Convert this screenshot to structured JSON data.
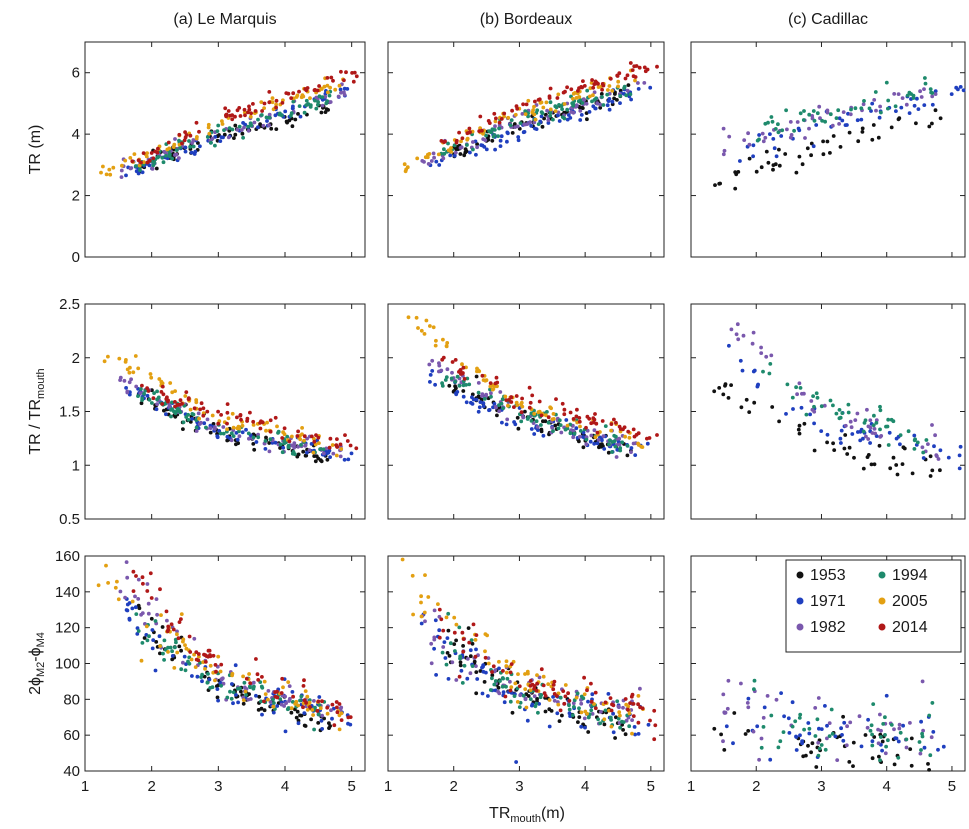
{
  "chart_data": {
    "type": "scatter",
    "layout": "3x3 grid of scatter panels sharing x axis",
    "columns": [
      {
        "key": "marquis",
        "title": "(a) Le Marquis"
      },
      {
        "key": "bordeaux",
        "title": "(b) Bordeaux"
      },
      {
        "key": "cadillac",
        "title": "(c) Cadillac"
      }
    ],
    "xlabel": {
      "main": "TR",
      "sub": "mouth",
      "unit": "(m)"
    },
    "xlim": [
      1,
      5.2
    ],
    "xticks": [
      "1",
      "2",
      "3",
      "4",
      "5"
    ],
    "rows": [
      {
        "key": "tr",
        "ylabel": {
          "main": "TR (m)"
        },
        "ylim": [
          0,
          7
        ],
        "yticks": [
          "0",
          "2",
          "4",
          "6"
        ]
      },
      {
        "key": "ratio",
        "ylabel": {
          "main": "TR / TR",
          "sub": "mouth"
        },
        "ylim": [
          0.5,
          2.5
        ],
        "yticks": [
          "0.5",
          "1",
          "1.5",
          "2",
          "2.5"
        ]
      },
      {
        "key": "phase",
        "ylabel": {
          "pre": "2ϕ",
          "sub1": "M2",
          "mid": "-ϕ",
          "sub2": "M4"
        },
        "ylim": [
          40,
          160
        ],
        "yticks": [
          "40",
          "60",
          "80",
          "100",
          "120",
          "140",
          "160"
        ]
      }
    ],
    "series": [
      {
        "name": "1953",
        "color": "#111111"
      },
      {
        "name": "1971",
        "color": "#1f3fbf"
      },
      {
        "name": "1982",
        "color": "#7a58ad"
      },
      {
        "name": "1994",
        "color": "#1e8a6c"
      },
      {
        "name": "2005",
        "color": "#e3a012"
      },
      {
        "name": "2014",
        "color": "#b01818"
      }
    ],
    "legend": {
      "position": "top-right of panel (c) Cadillac, bottom row",
      "columns": 2
    },
    "grid": false,
    "series_ranges": {
      "marquis": {
        "1953": [
          1.8,
          4.7
        ],
        "1971": [
          1.6,
          5.0
        ],
        "1982": [
          1.5,
          4.9
        ],
        "1994": [
          1.7,
          4.7
        ],
        "2005": [
          1.2,
          4.9
        ],
        "2014": [
          1.7,
          5.1
        ]
      },
      "bordeaux": {
        "1953": [
          1.9,
          4.7
        ],
        "1971": [
          1.5,
          5.0
        ],
        "1982": [
          1.5,
          4.9
        ],
        "1994": [
          1.8,
          4.7
        ],
        "2005": [
          1.2,
          4.9
        ],
        "2014": [
          1.7,
          5.1
        ]
      },
      "cadillac": {
        "1953": [
          1.3,
          4.9
        ],
        "1971": [
          1.5,
          5.2
        ],
        "1982": [
          1.4,
          4.8
        ],
        "1994": [
          1.9,
          4.7
        ]
      }
    },
    "trends": {
      "tr": {
        "marquis": {
          "1953": [
            [
              1.8,
              3.0
            ],
            [
              3,
              3.9
            ],
            [
              4.7,
              4.9
            ]
          ],
          "1971": [
            [
              1.6,
              2.75
            ],
            [
              3,
              3.9
            ],
            [
              5,
              5.5
            ]
          ],
          "1982": [
            [
              1.5,
              2.8
            ],
            [
              3,
              4.0
            ],
            [
              4.9,
              5.3
            ]
          ],
          "1994": [
            [
              1.7,
              2.9
            ],
            [
              3,
              4.0
            ],
            [
              4.7,
              5.2
            ]
          ],
          "2005": [
            [
              1.2,
              2.6
            ],
            [
              3,
              4.3
            ],
            [
              4.9,
              5.8
            ]
          ],
          "2014": [
            [
              1.7,
              3.1
            ],
            [
              3,
              4.5
            ],
            [
              5.1,
              6.0
            ]
          ]
        },
        "bordeaux": {
          "1953": [
            [
              1.9,
              3.3
            ],
            [
              3,
              4.3
            ],
            [
              4.7,
              5.3
            ]
          ],
          "1971": [
            [
              1.5,
              2.9
            ],
            [
              3,
              4.1
            ],
            [
              5,
              5.6
            ]
          ],
          "1982": [
            [
              1.5,
              3.0
            ],
            [
              3,
              4.4
            ],
            [
              4.9,
              5.5
            ]
          ],
          "1994": [
            [
              1.8,
              3.3
            ],
            [
              3,
              4.5
            ],
            [
              4.7,
              5.5
            ]
          ],
          "2005": [
            [
              1.2,
              2.9
            ],
            [
              3,
              4.7
            ],
            [
              4.9,
              6.0
            ]
          ],
          "2014": [
            [
              1.7,
              3.4
            ],
            [
              3,
              4.9
            ],
            [
              5.1,
              6.3
            ]
          ]
        },
        "cadillac": {
          "1953": [
            [
              1.3,
              2.45
            ],
            [
              2,
              3.0
            ],
            [
              3,
              3.6
            ],
            [
              4,
              4.2
            ],
            [
              4.9,
              4.7
            ]
          ],
          "1971": [
            [
              1.5,
              3.3
            ],
            [
              3,
              4.2
            ],
            [
              5.2,
              5.4
            ]
          ],
          "1982": [
            [
              1.4,
              3.5
            ],
            [
              3,
              4.6
            ],
            [
              4.8,
              5.4
            ]
          ],
          "1994": [
            [
              1.9,
              3.9
            ],
            [
              3,
              4.6
            ],
            [
              4.7,
              5.5
            ]
          ]
        }
      },
      "ratio": {
        "marquis": {
          "1953": [
            [
              1.8,
              1.65
            ],
            [
              3,
              1.3
            ],
            [
              4.7,
              1.07
            ]
          ],
          "1971": [
            [
              1.6,
              1.72
            ],
            [
              3,
              1.3
            ],
            [
              5,
              1.1
            ]
          ],
          "1982": [
            [
              1.5,
              1.8
            ],
            [
              3,
              1.33
            ],
            [
              4.9,
              1.1
            ]
          ],
          "1994": [
            [
              1.7,
              1.7
            ],
            [
              3,
              1.33
            ],
            [
              4.7,
              1.12
            ]
          ],
          "2005": [
            [
              1.2,
              2.1
            ],
            [
              3,
              1.42
            ],
            [
              4.9,
              1.18
            ]
          ],
          "2014": [
            [
              1.7,
              1.78
            ],
            [
              3,
              1.47
            ],
            [
              5.1,
              1.18
            ]
          ]
        },
        "bordeaux": {
          "1953": [
            [
              1.9,
              1.75
            ],
            [
              3,
              1.42
            ],
            [
              4.7,
              1.15
            ]
          ],
          "1971": [
            [
              1.5,
              1.9
            ],
            [
              3,
              1.37
            ],
            [
              5,
              1.12
            ]
          ],
          "1982": [
            [
              1.5,
              2.0
            ],
            [
              3,
              1.45
            ],
            [
              4.9,
              1.15
            ]
          ],
          "1994": [
            [
              1.8,
              1.85
            ],
            [
              3,
              1.5
            ],
            [
              4.7,
              1.18
            ]
          ],
          "2005": [
            [
              1.2,
              2.42
            ],
            [
              3,
              1.55
            ],
            [
              4.9,
              1.22
            ]
          ],
          "2014": [
            [
              1.7,
              2.0
            ],
            [
              3,
              1.6
            ],
            [
              5.1,
              1.25
            ]
          ]
        },
        "cadillac": {
          "1953": [
            [
              1.3,
              1.85
            ],
            [
              2,
              1.5
            ],
            [
              3,
              1.2
            ],
            [
              4,
              1.05
            ],
            [
              4.9,
              0.95
            ]
          ],
          "1971": [
            [
              1.5,
              2.1
            ],
            [
              3,
              1.4
            ],
            [
              5.2,
              1.05
            ]
          ],
          "1982": [
            [
              1.4,
              2.45
            ],
            [
              3,
              1.5
            ],
            [
              4.8,
              1.15
            ]
          ],
          "1994": [
            [
              1.9,
              2.0
            ],
            [
              3,
              1.55
            ],
            [
              4.7,
              1.2
            ]
          ]
        }
      },
      "phase": {
        "marquis": {
          "1953": [
            [
              1.8,
              125
            ],
            [
              3,
              85
            ],
            [
              4.7,
              68
            ]
          ],
          "1971": [
            [
              1.6,
              130
            ],
            [
              3,
              85
            ],
            [
              5,
              70
            ]
          ],
          "1982": [
            [
              1.5,
              150
            ],
            [
              3,
              90
            ],
            [
              4.9,
              72
            ]
          ],
          "1994": [
            [
              1.7,
              120
            ],
            [
              3,
              88
            ],
            [
              4.7,
              72
            ]
          ],
          "2005": [
            [
              1.2,
              140
            ],
            [
              3,
              95
            ],
            [
              4.9,
              72
            ]
          ],
          "2014": [
            [
              1.7,
              150
            ],
            [
              3,
              98
            ],
            [
              5.1,
              70
            ]
          ]
        },
        "bordeaux": {
          "1953": [
            [
              1.9,
              110
            ],
            [
              3,
              82
            ],
            [
              4.7,
              65
            ]
          ],
          "1971": [
            [
              1.5,
              115
            ],
            [
              3,
              80
            ],
            [
              5,
              68
            ]
          ],
          "1982": [
            [
              1.5,
              120
            ],
            [
              3,
              85
            ],
            [
              4.9,
              70
            ]
          ],
          "1994": [
            [
              1.8,
              110
            ],
            [
              3,
              82
            ],
            [
              4.7,
              70
            ]
          ],
          "2005": [
            [
              1.2,
              145
            ],
            [
              3,
              90
            ],
            [
              4.9,
              70
            ]
          ],
          "2014": [
            [
              1.7,
              125
            ],
            [
              3,
              90
            ],
            [
              5.1,
              72
            ]
          ]
        },
        "cadillac": {
          "1953": [
            [
              1.3,
              66
            ],
            [
              2,
              62
            ],
            [
              3,
              58
            ],
            [
              4,
              55
            ],
            [
              4.9,
              54
            ]
          ],
          "1971": [
            [
              1.5,
              72
            ],
            [
              3,
              62
            ],
            [
              5.2,
              58
            ]
          ],
          "1982": [
            [
              1.4,
              80
            ],
            [
              3,
              65
            ],
            [
              4.8,
              60
            ]
          ],
          "1994": [
            [
              1.9,
              68
            ],
            [
              3,
              62
            ],
            [
              4.7,
              60
            ]
          ]
        }
      }
    },
    "outliers": [
      {
        "row": "phase",
        "column": "cadillac",
        "series": "1971",
        "x": 4.0,
        "y": 82
      },
      {
        "row": "phase",
        "column": "cadillac",
        "series": "1982",
        "x": 4.55,
        "y": 90
      },
      {
        "row": "phase",
        "column": "cadillac",
        "series": "1994",
        "x": 4.7,
        "y": 78
      },
      {
        "row": "phase",
        "column": "bordeaux",
        "series": "1971",
        "x": 2.95,
        "y": 45
      }
    ]
  }
}
